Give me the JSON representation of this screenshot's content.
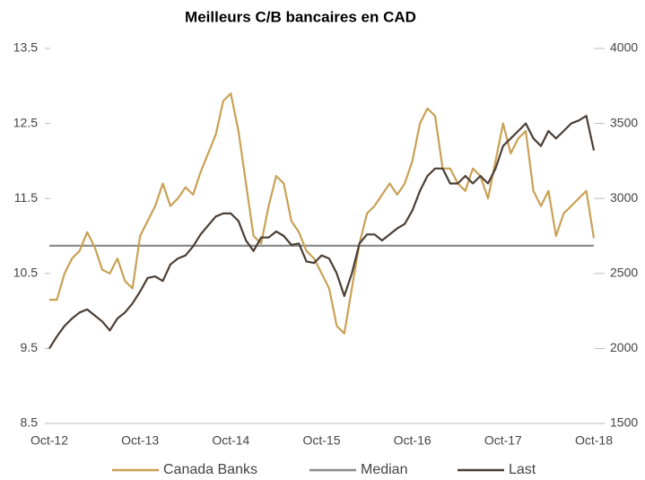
{
  "chart_data": {
    "type": "line",
    "title": "Meilleurs C/B bancaires en CAD",
    "categories": [
      "Oct-12",
      null,
      null,
      null,
      null,
      null,
      null,
      null,
      null,
      null,
      null,
      null,
      "Oct-13",
      null,
      null,
      null,
      null,
      null,
      null,
      null,
      null,
      null,
      null,
      null,
      "Oct-14",
      null,
      null,
      null,
      null,
      null,
      null,
      null,
      null,
      null,
      null,
      null,
      "Oct-15",
      null,
      null,
      null,
      null,
      null,
      null,
      null,
      null,
      null,
      null,
      null,
      "Oct-16",
      null,
      null,
      null,
      null,
      null,
      null,
      null,
      null,
      null,
      null,
      null,
      "Oct-17",
      null,
      null,
      null,
      null,
      null,
      null,
      null,
      null,
      null,
      null,
      null,
      "Oct-18"
    ],
    "series": [
      {
        "name": "Canada Banks",
        "color": "#c9a154",
        "values": [
          10.15,
          10.15,
          10.5,
          10.7,
          10.8,
          11.05,
          10.85,
          10.55,
          10.5,
          10.7,
          10.4,
          10.3,
          11.0,
          11.2,
          11.4,
          11.7,
          11.4,
          11.5,
          11.65,
          11.55,
          11.85,
          12.1,
          12.35,
          12.8,
          12.9,
          12.4,
          11.7,
          11.0,
          10.9,
          11.4,
          11.8,
          11.7,
          11.2,
          11.05,
          10.8,
          10.7,
          10.5,
          10.3,
          9.8,
          9.7,
          10.3,
          10.9,
          11.3,
          11.4,
          11.55,
          11.7,
          11.55,
          11.7,
          12.0,
          12.5,
          12.7,
          12.6,
          11.9,
          11.9,
          11.7,
          11.6,
          11.9,
          11.8,
          11.5,
          12.0,
          12.5,
          12.1,
          12.3,
          12.4,
          11.6,
          11.4,
          11.6,
          11.0,
          11.3,
          11.4,
          11.5,
          11.6,
          10.97
        ]
      },
      {
        "name": "Median",
        "color": "#8c8c8c",
        "value": 10.87
      },
      {
        "name": "Last",
        "color": "#4a3e35",
        "axis": "y2",
        "values": [
          2000,
          2080,
          2150,
          2200,
          2240,
          2260,
          2220,
          2180,
          2120,
          2200,
          2240,
          2300,
          2380,
          2470,
          2480,
          2450,
          2560,
          2600,
          2620,
          2680,
          2760,
          2820,
          2880,
          2900,
          2900,
          2850,
          2720,
          2650,
          2740,
          2740,
          2780,
          2750,
          2690,
          2700,
          2580,
          2570,
          2620,
          2600,
          2500,
          2350,
          2500,
          2700,
          2760,
          2760,
          2720,
          2760,
          2800,
          2830,
          2920,
          3050,
          3150,
          3200,
          3200,
          3100,
          3100,
          3150,
          3100,
          3150,
          3100,
          3200,
          3350,
          3400,
          3450,
          3500,
          3400,
          3350,
          3450,
          3400,
          3450,
          3500,
          3520,
          3550,
          3320
        ]
      }
    ],
    "ylim": [
      8.5,
      13.5
    ],
    "yticks": [
      8.5,
      9.5,
      10.5,
      11.5,
      12.5,
      13.5
    ],
    "y2lim": [
      1500,
      4000
    ],
    "y2ticks": [
      1500,
      2000,
      2500,
      3000,
      3500,
      4000
    ],
    "legend": "bottom"
  }
}
